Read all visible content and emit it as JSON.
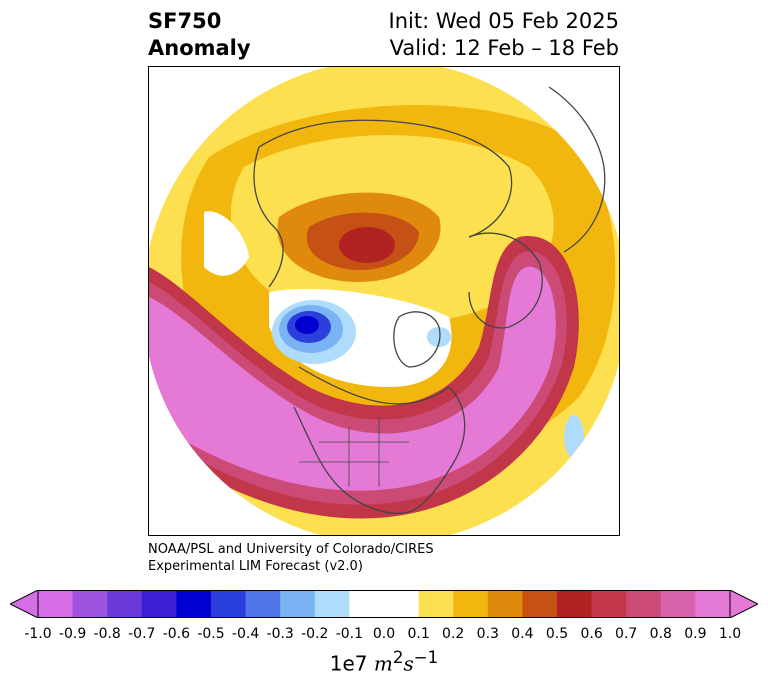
{
  "title": {
    "variable": "SF750",
    "kind": "Anomaly",
    "init": "Init: Wed 05 Feb 2025",
    "valid": "Valid: 12 Feb – 18 Feb"
  },
  "credit": {
    "line1": "NOAA/PSL and University of Colorado/CIRES",
    "line2": "Experimental LIM Forecast (v2.0)"
  },
  "colorbar": {
    "levels": [
      "-1.0",
      "-0.9",
      "-0.8",
      "-0.7",
      "-0.6",
      "-0.5",
      "-0.4",
      "-0.3",
      "-0.2",
      "-0.1",
      "0.0",
      "0.1",
      "0.2",
      "0.3",
      "0.4",
      "0.5",
      "0.6",
      "0.7",
      "0.8",
      "0.9",
      "1.0"
    ],
    "colors": [
      "#d56de6",
      "#9e52e0",
      "#6a3ad8",
      "#3a1fd4",
      "#0000d0",
      "#2a3fdc",
      "#4f76e8",
      "#79b3f3",
      "#afdcfa",
      "#ffffff",
      "#ffffff",
      "#fde050",
      "#f2b70e",
      "#df8a0c",
      "#c55214",
      "#b22222",
      "#c13648",
      "#cb4b76",
      "#d863ac",
      "#e47ad6"
    ],
    "extend_low_color": "#d56de6",
    "extend_high_color": "#e47ad6",
    "units_prefix": "1e7",
    "units_m": "m",
    "units_m_exp": "2",
    "units_s": "s",
    "units_s_exp": "−1"
  },
  "map": {
    "projection": "north-polar-stereographic",
    "fields": {
      "positive_high": "#e47ad6",
      "positive_mid": "#c13648",
      "positive_low": "#f2b70e",
      "negative_core": "#0000d0",
      "negative_light": "#afdcfa"
    }
  }
}
